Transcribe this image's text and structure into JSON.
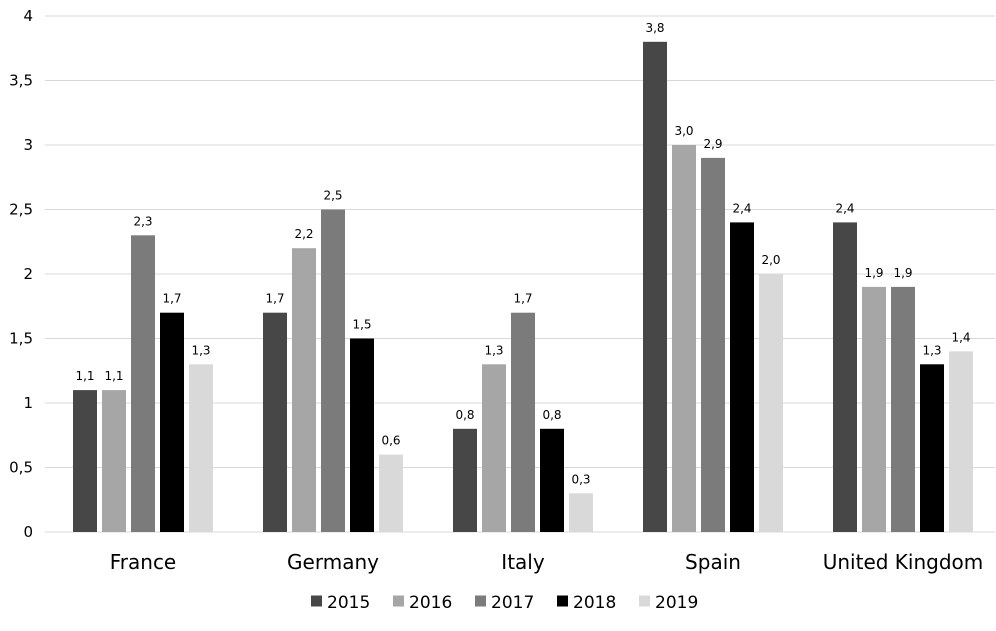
{
  "chart_data": {
    "type": "bar",
    "categories": [
      "France",
      "Germany",
      "Italy",
      "Spain",
      "United Kingdom"
    ],
    "series": [
      {
        "name": "2015",
        "color": "#474747",
        "values": [
          1.1,
          1.7,
          0.8,
          3.8,
          2.4
        ],
        "labels": [
          "1,1",
          "1,7",
          "0,8",
          "3,8",
          "2,4"
        ]
      },
      {
        "name": "2016",
        "color": "#a6a6a6",
        "values": [
          1.1,
          2.2,
          1.3,
          3.0,
          1.9
        ],
        "labels": [
          "1,1",
          "2,2",
          "1,3",
          "3,0",
          "1,9"
        ]
      },
      {
        "name": "2017",
        "color": "#7b7b7b",
        "values": [
          2.3,
          2.5,
          1.7,
          2.9,
          1.9
        ],
        "labels": [
          "2,3",
          "2,5",
          "1,7",
          "2,9",
          "1,9"
        ]
      },
      {
        "name": "2018",
        "color": "#000000",
        "values": [
          1.7,
          1.5,
          0.8,
          2.4,
          1.3
        ],
        "labels": [
          "1,7",
          "1,5",
          "0,8",
          "2,4",
          "1,3"
        ]
      },
      {
        "name": "2019",
        "color": "#d9d9d9",
        "values": [
          1.3,
          0.6,
          0.3,
          2.0,
          1.4
        ],
        "labels": [
          "1,3",
          "0,6",
          "0,3",
          "2,0",
          "1,4"
        ]
      }
    ],
    "yticks": [
      0,
      0.5,
      1,
      1.5,
      2,
      2.5,
      3,
      3.5,
      4
    ],
    "ytick_labels": [
      "0",
      "0,5",
      "1",
      "1,5",
      "2",
      "2,5",
      "3",
      "3,5",
      "4"
    ],
    "ylim": [
      0,
      4
    ],
    "grid": true,
    "legend_position": "bottom",
    "title": "",
    "xlabel": "",
    "ylabel": ""
  }
}
